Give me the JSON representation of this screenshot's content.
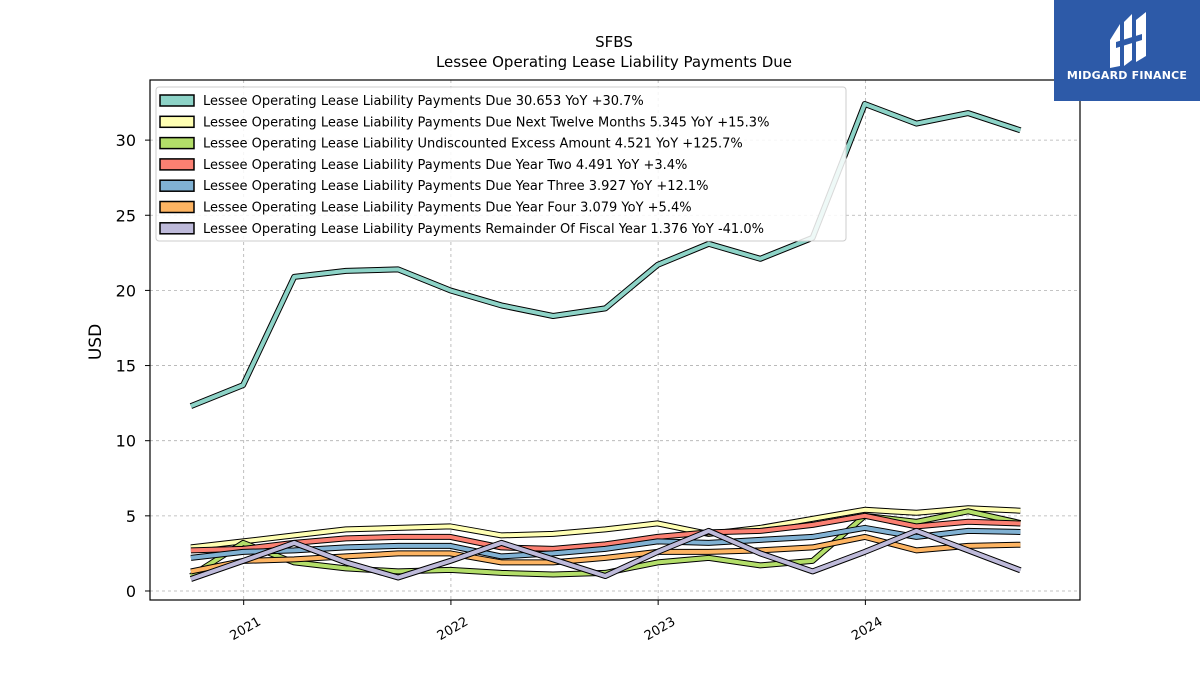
{
  "chart_data": {
    "type": "line",
    "title": "SFBS",
    "subtitle": "Lessee Operating Lease Liability Payments Due",
    "ylabel": "USD",
    "xlabel": "",
    "ylim": [
      -0.6,
      34
    ],
    "grid": true,
    "legend_position": "top-left",
    "x_ticks": [
      "2021",
      "2022",
      "2023",
      "2024"
    ],
    "y_ticks": [
      0,
      5,
      10,
      15,
      20,
      25,
      30
    ],
    "x": [
      "2020-09-30",
      "2020-12-31",
      "2021-03-31",
      "2021-06-30",
      "2021-09-30",
      "2021-12-31",
      "2022-03-31",
      "2022-06-30",
      "2022-09-30",
      "2022-12-31",
      "2023-03-31",
      "2023-06-30",
      "2023-09-30",
      "2023-12-31",
      "2024-03-31",
      "2024-06-30",
      "2024-09-30"
    ],
    "series": [
      {
        "name": "Lessee Operating Lease Liability Payments Due",
        "legend": "Lessee Operating Lease Liability Payments Due  30.653 YoY +30.7%",
        "color": "#8dd3c7",
        "values": [
          12.3,
          13.7,
          20.9,
          21.3,
          21.4,
          20.0,
          19.0,
          18.3,
          18.8,
          21.7,
          23.1,
          22.1,
          23.5,
          32.4,
          31.1,
          31.8,
          30.653
        ]
      },
      {
        "name": "Lessee Operating Lease Liability Payments Due Next Twelve Months",
        "legend": "Lessee Operating Lease Liability Payments Due Next Twelve Months  5.345 YoY +15.3%",
        "color": "#ffffb3",
        "values": [
          2.9,
          3.3,
          3.7,
          4.1,
          4.2,
          4.3,
          3.7,
          3.8,
          4.1,
          4.5,
          3.8,
          4.2,
          4.8,
          5.4,
          5.2,
          5.5,
          5.345
        ]
      },
      {
        "name": "Lessee Operating Lease Liability Undiscounted Excess Amount",
        "legend": "Lessee Operating Lease Liability Undiscounted Excess Amount  4.521 YoY +125.7%",
        "color": "#b3de69",
        "values": [
          1.0,
          3.2,
          1.9,
          1.5,
          1.3,
          1.4,
          1.2,
          1.1,
          1.2,
          1.9,
          2.2,
          1.7,
          2.0,
          5.0,
          4.6,
          5.3,
          4.521
        ]
      },
      {
        "name": "Lessee Operating Lease Liability Payments Due Year Two",
        "legend": "Lessee Operating Lease Liability Payments Due Year Two  4.491 YoY +3.4%",
        "color": "#fb8072",
        "values": [
          2.7,
          2.8,
          3.2,
          3.5,
          3.6,
          3.6,
          2.9,
          2.8,
          3.1,
          3.6,
          3.9,
          4.0,
          4.4,
          5.0,
          4.3,
          4.6,
          4.491
        ]
      },
      {
        "name": "Lessee Operating Lease Liability Payments Due Year Three",
        "legend": "Lessee Operating Lease Liability Payments Due Year Three  3.927 YoY +12.1%",
        "color": "#80b1d3",
        "values": [
          2.2,
          2.6,
          2.7,
          2.9,
          3.0,
          3.0,
          2.3,
          2.5,
          2.8,
          3.3,
          3.2,
          3.4,
          3.6,
          4.2,
          3.6,
          4.0,
          3.927
        ]
      },
      {
        "name": "Lessee Operating Lease Liability Payments Due Year Four",
        "legend": "Lessee Operating Lease Liability Payments Due Year Four  3.079 YoY +5.4%",
        "color": "#fdb462",
        "values": [
          1.3,
          2.0,
          2.1,
          2.3,
          2.5,
          2.5,
          1.9,
          1.9,
          2.2,
          2.6,
          2.6,
          2.7,
          2.9,
          3.6,
          2.7,
          3.0,
          3.079
        ]
      },
      {
        "name": "Lessee Operating Lease Liability Payments Remainder Of Fiscal Year",
        "legend": "Lessee Operating Lease Liability Payments Remainder Of Fiscal Year  1.376 YoY -41.0%",
        "color": "#bebada",
        "values": [
          0.8,
          2.0,
          3.2,
          1.9,
          0.9,
          2.0,
          3.2,
          2.1,
          1.0,
          2.6,
          4.0,
          2.5,
          1.3,
          2.6,
          4.0,
          2.7,
          1.376
        ]
      }
    ]
  },
  "logo": {
    "text": "MIDGARD FINANCE",
    "icon": "midgard-logo-icon",
    "background": "#2d5aa8"
  }
}
